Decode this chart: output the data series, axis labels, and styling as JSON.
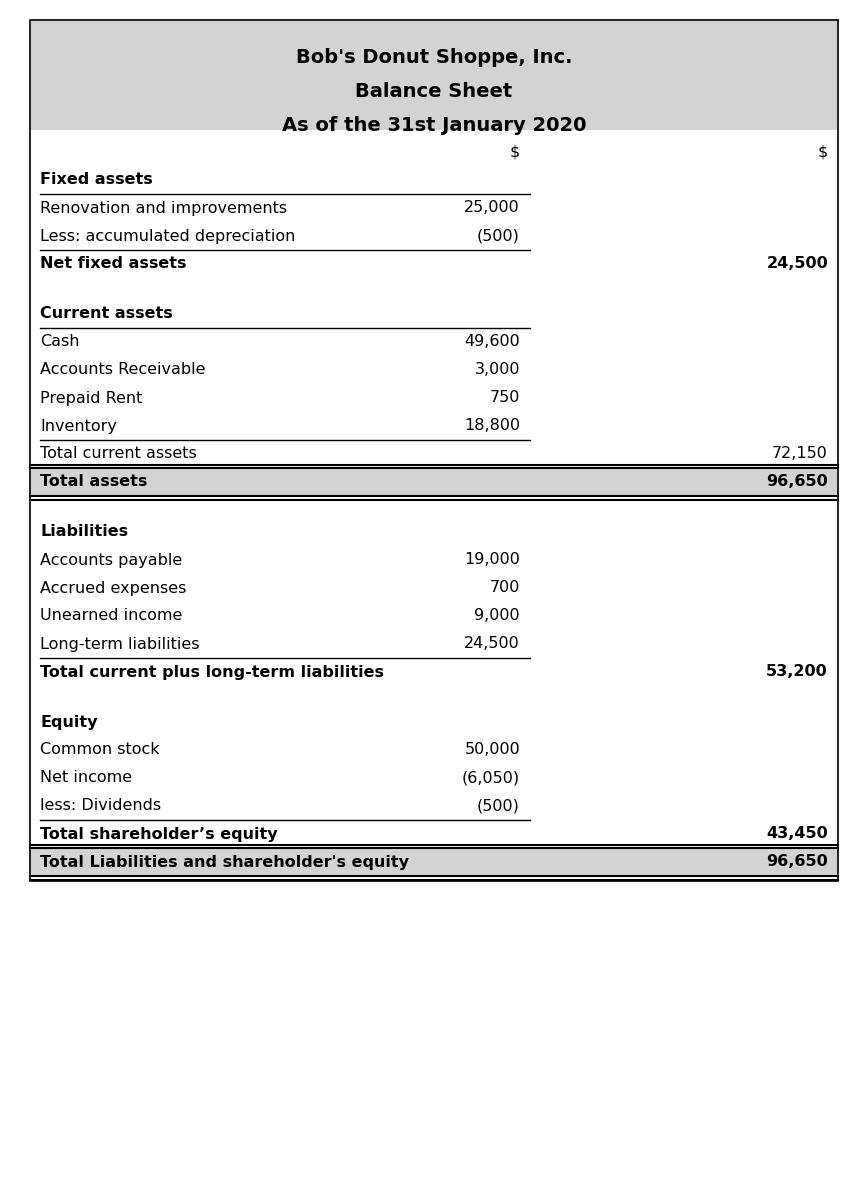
{
  "title_lines": [
    "Bob's Donut Shoppe, Inc.",
    "Balance Sheet",
    "As of the 31st January 2020"
  ],
  "header_bg": "#d3d3d3",
  "row_bg_shaded": "#d3d3d3",
  "rows": [
    {
      "text": "",
      "col2": "$",
      "col3": "$",
      "bold": false,
      "bottom_line": false,
      "bg": "white",
      "dollar_header": true,
      "spacer": false,
      "section_gap": false
    },
    {
      "text": "Fixed assets",
      "col2": "",
      "col3": "",
      "bold": true,
      "bottom_line": true,
      "bg": "white",
      "dollar_header": false,
      "spacer": false,
      "section_gap": false
    },
    {
      "text": "Renovation and improvements",
      "col2": "25,000",
      "col3": "",
      "bold": false,
      "bottom_line": false,
      "bg": "white",
      "dollar_header": false,
      "spacer": false,
      "section_gap": false
    },
    {
      "text": "Less: accumulated depreciation",
      "col2": "(500)",
      "col3": "",
      "bold": false,
      "bottom_line": true,
      "bg": "white",
      "dollar_header": false,
      "spacer": false,
      "section_gap": false
    },
    {
      "text": "Net fixed assets",
      "col2": "",
      "col3": "24,500",
      "bold": true,
      "bottom_line": false,
      "bg": "white",
      "dollar_header": false,
      "spacer": false,
      "section_gap": false
    },
    {
      "text": "",
      "col2": "",
      "col3": "",
      "bold": false,
      "bottom_line": false,
      "bg": "white",
      "dollar_header": false,
      "spacer": true,
      "section_gap": false
    },
    {
      "text": "Current assets",
      "col2": "",
      "col3": "",
      "bold": true,
      "bottom_line": true,
      "bg": "white",
      "dollar_header": false,
      "spacer": false,
      "section_gap": false
    },
    {
      "text": "Cash",
      "col2": "49,600",
      "col3": "",
      "bold": false,
      "bottom_line": false,
      "bg": "white",
      "dollar_header": false,
      "spacer": false,
      "section_gap": false
    },
    {
      "text": "Accounts Receivable",
      "col2": "3,000",
      "col3": "",
      "bold": false,
      "bottom_line": false,
      "bg": "white",
      "dollar_header": false,
      "spacer": false,
      "section_gap": false
    },
    {
      "text": "Prepaid Rent",
      "col2": "750",
      "col3": "",
      "bold": false,
      "bottom_line": false,
      "bg": "white",
      "dollar_header": false,
      "spacer": false,
      "section_gap": false
    },
    {
      "text": "Inventory",
      "col2": "18,800",
      "col3": "",
      "bold": false,
      "bottom_line": true,
      "bg": "white",
      "dollar_header": false,
      "spacer": false,
      "section_gap": false
    },
    {
      "text": "Total current assets",
      "col2": "",
      "col3": "72,150",
      "bold": false,
      "bottom_line": false,
      "bg": "white",
      "dollar_header": false,
      "spacer": false,
      "section_gap": false
    },
    {
      "text": "Total assets",
      "col2": "",
      "col3": "96,650",
      "bold": true,
      "bottom_line": false,
      "bg": "shaded",
      "dollar_header": false,
      "spacer": false,
      "section_gap": false,
      "double_border": true
    },
    {
      "text": "",
      "col2": "",
      "col3": "",
      "bold": false,
      "bottom_line": false,
      "bg": "white",
      "dollar_header": false,
      "spacer": true,
      "section_gap": false
    },
    {
      "text": "Liabilities",
      "col2": "",
      "col3": "",
      "bold": true,
      "bottom_line": false,
      "bg": "white",
      "dollar_header": false,
      "spacer": false,
      "section_gap": false
    },
    {
      "text": "Accounts payable",
      "col2": "19,000",
      "col3": "",
      "bold": false,
      "bottom_line": false,
      "bg": "white",
      "dollar_header": false,
      "spacer": false,
      "section_gap": false
    },
    {
      "text": "Accrued expenses",
      "col2": "700",
      "col3": "",
      "bold": false,
      "bottom_line": false,
      "bg": "white",
      "dollar_header": false,
      "spacer": false,
      "section_gap": false
    },
    {
      "text": "Unearned income",
      "col2": "9,000",
      "col3": "",
      "bold": false,
      "bottom_line": false,
      "bg": "white",
      "dollar_header": false,
      "spacer": false,
      "section_gap": false
    },
    {
      "text": "Long-term liabilities",
      "col2": "24,500",
      "col3": "",
      "bold": false,
      "bottom_line": true,
      "bg": "white",
      "dollar_header": false,
      "spacer": false,
      "section_gap": false
    },
    {
      "text": "Total current plus long-term liabilities",
      "col2": "",
      "col3": "53,200",
      "bold": true,
      "bottom_line": false,
      "bg": "white",
      "dollar_header": false,
      "spacer": false,
      "section_gap": false
    },
    {
      "text": "",
      "col2": "",
      "col3": "",
      "bold": false,
      "bottom_line": false,
      "bg": "white",
      "dollar_header": false,
      "spacer": true,
      "section_gap": false
    },
    {
      "text": "Equity",
      "col2": "",
      "col3": "",
      "bold": true,
      "bottom_line": false,
      "bg": "white",
      "dollar_header": false,
      "spacer": false,
      "section_gap": false
    },
    {
      "text": "Common stock",
      "col2": "50,000",
      "col3": "",
      "bold": false,
      "bottom_line": false,
      "bg": "white",
      "dollar_header": false,
      "spacer": false,
      "section_gap": false
    },
    {
      "text": "Net income",
      "col2": "(6,050)",
      "col3": "",
      "bold": false,
      "bottom_line": false,
      "bg": "white",
      "dollar_header": false,
      "spacer": false,
      "section_gap": false
    },
    {
      "text": "less: Dividends",
      "col2": "(500)",
      "col3": "",
      "bold": false,
      "bottom_line": true,
      "bg": "white",
      "dollar_header": false,
      "spacer": false,
      "section_gap": false
    },
    {
      "text": "Total shareholder’s equity",
      "col2": "",
      "col3": "43,450",
      "bold": true,
      "bottom_line": false,
      "bg": "white",
      "dollar_header": false,
      "spacer": false,
      "section_gap": false
    },
    {
      "text": "Total Liabilities and shareholder's equity",
      "col2": "",
      "col3": "96,650",
      "bold": true,
      "bottom_line": false,
      "bg": "shaded",
      "dollar_header": false,
      "spacer": false,
      "section_gap": false,
      "double_border": true
    }
  ],
  "fig_width": 8.68,
  "fig_height": 12.0,
  "dpi": 100
}
